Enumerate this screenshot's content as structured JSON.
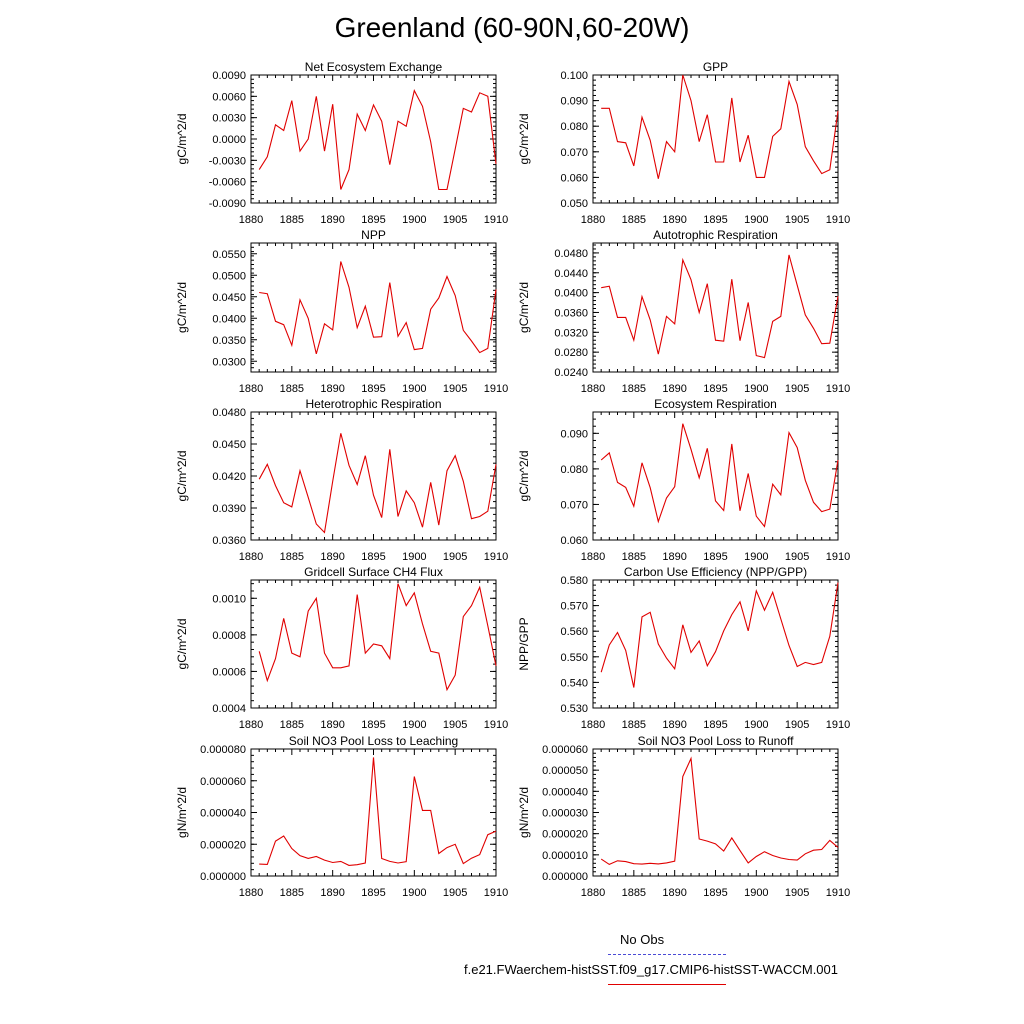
{
  "title": "Greenland (60-90N,60-20W)",
  "legend": [
    {
      "label": "No Obs",
      "color": "#4a4ad6",
      "style": "dashed"
    },
    {
      "label": "f.e21.FWaerchem-histSST.f09_g17.CMIP6-histSST-WACCM.001",
      "color": "#e00000",
      "style": "solid"
    }
  ],
  "chart_data": [
    {
      "type": "line",
      "title": "Net Ecosystem Exchange",
      "ylabel": "gC/m^2/d",
      "xlim": [
        1880,
        1910
      ],
      "xticks": [
        "1880",
        "1885",
        "1890",
        "1895",
        "1900",
        "1905",
        "1910"
      ],
      "ylim": [
        -0.009,
        0.009
      ],
      "yticks": [
        "-0.0090",
        "-0.0060",
        "-0.0030",
        "0.0000",
        "0.0030",
        "0.0060",
        "0.0090"
      ],
      "ytick_values": [
        -0.009,
        -0.006,
        -0.003,
        0,
        0.003,
        0.006,
        0.009
      ],
      "x": [
        1881,
        1882,
        1883,
        1884,
        1885,
        1886,
        1887,
        1888,
        1889,
        1890,
        1891,
        1892,
        1893,
        1894,
        1895,
        1896,
        1897,
        1898,
        1899,
        1900,
        1901,
        1902,
        1903,
        1904,
        1905,
        1906,
        1907,
        1908,
        1909,
        1910
      ],
      "series": [
        {
          "name": "f.e21.FWaerchem-histSST.f09_g17.CMIP6-histSST-WACCM.001",
          "color": "#e00000",
          "values": [
            -0.0043,
            -0.0025,
            0.002,
            0.0012,
            0.0054,
            -0.0017,
            0.0,
            0.006,
            -0.0017,
            0.0049,
            -0.0071,
            -0.0043,
            0.0035,
            0.0012,
            0.0048,
            0.0025,
            -0.0036,
            0.0025,
            0.0018,
            0.0068,
            0.0046,
            -0.0004,
            -0.0071,
            -0.0071,
            -0.0014,
            0.0043,
            0.0038,
            0.0065,
            0.006,
            -0.0035
          ]
        }
      ]
    },
    {
      "type": "line",
      "title": "GPP",
      "ylabel": "gC/m^2/d",
      "xlim": [
        1880,
        1910
      ],
      "xticks": [
        "1880",
        "1885",
        "1890",
        "1895",
        "1900",
        "1905",
        "1910"
      ],
      "ylim": [
        0.05,
        0.1
      ],
      "yticks": [
        "0.050",
        "0.060",
        "0.070",
        "0.080",
        "0.090",
        "0.100"
      ],
      "ytick_values": [
        0.05,
        0.06,
        0.07,
        0.08,
        0.09,
        0.1
      ],
      "x": [
        1881,
        1882,
        1883,
        1884,
        1885,
        1886,
        1887,
        1888,
        1889,
        1890,
        1891,
        1892,
        1893,
        1894,
        1895,
        1896,
        1897,
        1898,
        1899,
        1900,
        1901,
        1902,
        1903,
        1904,
        1905,
        1906,
        1907,
        1908,
        1909,
        1910
      ],
      "series": [
        {
          "name": "f.e21.FWaerchem-histSST.f09_g17.CMIP6-histSST-WACCM.001",
          "color": "#e00000",
          "values": [
            0.087,
            0.087,
            0.074,
            0.0735,
            0.0645,
            0.0835,
            0.0745,
            0.0595,
            0.074,
            0.07,
            0.1,
            0.09,
            0.074,
            0.0845,
            0.066,
            0.066,
            0.091,
            0.066,
            0.0765,
            0.06,
            0.06,
            0.076,
            0.079,
            0.0975,
            0.0885,
            0.072,
            0.0665,
            0.0615,
            0.063,
            0.086
          ]
        }
      ]
    },
    {
      "type": "line",
      "title": "NPP",
      "ylabel": "gC/m^2/d",
      "xlim": [
        1880,
        1910
      ],
      "xticks": [
        "1880",
        "1885",
        "1890",
        "1895",
        "1900",
        "1905",
        "1910"
      ],
      "ylim": [
        0.0275,
        0.0575
      ],
      "yticks": [
        "0.0300",
        "0.0350",
        "0.0400",
        "0.0450",
        "0.0500",
        "0.0550"
      ],
      "ytick_values": [
        0.03,
        0.035,
        0.04,
        0.045,
        0.05,
        0.055
      ],
      "x": [
        1881,
        1882,
        1883,
        1884,
        1885,
        1886,
        1887,
        1888,
        1889,
        1890,
        1891,
        1892,
        1893,
        1894,
        1895,
        1896,
        1897,
        1898,
        1899,
        1900,
        1901,
        1902,
        1903,
        1904,
        1905,
        1906,
        1907,
        1908,
        1909,
        1910
      ],
      "series": [
        {
          "name": "f.e21.FWaerchem-histSST.f09_g17.CMIP6-histSST-WACCM.001",
          "color": "#e00000",
          "values": [
            0.046,
            0.0457,
            0.0393,
            0.0385,
            0.0337,
            0.0443,
            0.04,
            0.0317,
            0.0387,
            0.0373,
            0.0532,
            0.0472,
            0.0378,
            0.0428,
            0.0356,
            0.0357,
            0.0483,
            0.0358,
            0.039,
            0.0327,
            0.033,
            0.0421,
            0.0447,
            0.0497,
            0.0453,
            0.0372,
            0.0347,
            0.032,
            0.033,
            0.0467
          ]
        }
      ]
    },
    {
      "type": "line",
      "title": "Autotrophic Respiration",
      "ylabel": "gC/m^2/d",
      "xlim": [
        1880,
        1910
      ],
      "xticks": [
        "1880",
        "1885",
        "1890",
        "1895",
        "1900",
        "1905",
        "1910"
      ],
      "ylim": [
        0.024,
        0.05
      ],
      "yticks": [
        "0.0240",
        "0.0280",
        "0.0320",
        "0.0360",
        "0.0400",
        "0.0440",
        "0.0480"
      ],
      "ytick_values": [
        0.024,
        0.028,
        0.032,
        0.036,
        0.04,
        0.044,
        0.048
      ],
      "x": [
        1881,
        1882,
        1883,
        1884,
        1885,
        1886,
        1887,
        1888,
        1889,
        1890,
        1891,
        1892,
        1893,
        1894,
        1895,
        1896,
        1897,
        1898,
        1899,
        1900,
        1901,
        1902,
        1903,
        1904,
        1905,
        1906,
        1907,
        1908,
        1909,
        1910
      ],
      "series": [
        {
          "name": "f.e21.FWaerchem-histSST.f09_g17.CMIP6-histSST-WACCM.001",
          "color": "#e00000",
          "values": [
            0.041,
            0.0413,
            0.035,
            0.035,
            0.0304,
            0.0392,
            0.0345,
            0.0276,
            0.0352,
            0.0337,
            0.0466,
            0.0426,
            0.036,
            0.0418,
            0.0304,
            0.0302,
            0.0427,
            0.0303,
            0.038,
            0.0273,
            0.0269,
            0.0342,
            0.0352,
            0.0476,
            0.0415,
            0.0355,
            0.0328,
            0.0297,
            0.0298,
            0.0393
          ]
        }
      ]
    },
    {
      "type": "line",
      "title": "Heterotrophic Respiration",
      "ylabel": "gC/m^2/d",
      "xlim": [
        1880,
        1910
      ],
      "xticks": [
        "1880",
        "1885",
        "1890",
        "1895",
        "1900",
        "1905",
        "1910"
      ],
      "ylim": [
        0.036,
        0.048
      ],
      "yticks": [
        "0.0360",
        "0.0390",
        "0.0420",
        "0.0450",
        "0.0480"
      ],
      "ytick_values": [
        0.036,
        0.039,
        0.042,
        0.045,
        0.048
      ],
      "x": [
        1881,
        1882,
        1883,
        1884,
        1885,
        1886,
        1887,
        1888,
        1889,
        1890,
        1891,
        1892,
        1893,
        1894,
        1895,
        1896,
        1897,
        1898,
        1899,
        1900,
        1901,
        1902,
        1903,
        1904,
        1905,
        1906,
        1907,
        1908,
        1909,
        1910
      ],
      "series": [
        {
          "name": "f.e21.FWaerchem-histSST.f09_g17.CMIP6-histSST-WACCM.001",
          "color": "#e00000",
          "values": [
            0.0417,
            0.0431,
            0.0411,
            0.0395,
            0.0391,
            0.0425,
            0.04,
            0.0375,
            0.0367,
            0.0415,
            0.046,
            0.043,
            0.0412,
            0.0439,
            0.0402,
            0.0381,
            0.0445,
            0.0382,
            0.0406,
            0.0395,
            0.0372,
            0.0414,
            0.0374,
            0.0425,
            0.0439,
            0.0415,
            0.038,
            0.0382,
            0.0387,
            0.0431
          ]
        }
      ]
    },
    {
      "type": "line",
      "title": "Ecosystem Respiration",
      "ylabel": "gC/m^2/d",
      "xlim": [
        1880,
        1910
      ],
      "xticks": [
        "1880",
        "1885",
        "1890",
        "1895",
        "1900",
        "1905",
        "1910"
      ],
      "ylim": [
        0.06,
        0.096
      ],
      "yticks": [
        "0.060",
        "0.070",
        "0.080",
        "0.090"
      ],
      "ytick_values": [
        0.06,
        0.07,
        0.08,
        0.09
      ],
      "x": [
        1881,
        1882,
        1883,
        1884,
        1885,
        1886,
        1887,
        1888,
        1889,
        1890,
        1891,
        1892,
        1893,
        1894,
        1895,
        1896,
        1897,
        1898,
        1899,
        1900,
        1901,
        1902,
        1903,
        1904,
        1905,
        1906,
        1907,
        1908,
        1909,
        1910
      ],
      "series": [
        {
          "name": "f.e21.FWaerchem-histSST.f09_g17.CMIP6-histSST-WACCM.001",
          "color": "#e00000",
          "values": [
            0.0825,
            0.0845,
            0.0762,
            0.0748,
            0.0695,
            0.0817,
            0.0747,
            0.0652,
            0.0718,
            0.075,
            0.0927,
            0.0855,
            0.0775,
            0.0858,
            0.071,
            0.0683,
            0.087,
            0.0682,
            0.0787,
            0.0667,
            0.0638,
            0.0757,
            0.0727,
            0.0902,
            0.086,
            0.0768,
            0.0706,
            0.068,
            0.0687,
            0.0825
          ]
        }
      ]
    },
    {
      "type": "line",
      "title": "Gridcell Surface CH4 Flux",
      "ylabel": "gC/m^2/d",
      "xlim": [
        1880,
        1910
      ],
      "xticks": [
        "1880",
        "1885",
        "1890",
        "1895",
        "1900",
        "1905",
        "1910"
      ],
      "ylim": [
        0.0004,
        0.0011
      ],
      "yticks": [
        "0.0004",
        "0.0006",
        "0.0008",
        "0.0010"
      ],
      "ytick_values": [
        0.0004,
        0.0006,
        0.0008,
        0.001
      ],
      "x": [
        1881,
        1882,
        1883,
        1884,
        1885,
        1886,
        1887,
        1888,
        1889,
        1890,
        1891,
        1892,
        1893,
        1894,
        1895,
        1896,
        1897,
        1898,
        1899,
        1900,
        1901,
        1902,
        1903,
        1904,
        1905,
        1906,
        1907,
        1908,
        1909,
        1910
      ],
      "series": [
        {
          "name": "f.e21.FWaerchem-histSST.f09_g17.CMIP6-histSST-WACCM.001",
          "color": "#e00000",
          "values": [
            0.00071,
            0.00055,
            0.00067,
            0.00089,
            0.0007,
            0.00068,
            0.00093,
            0.001,
            0.0007,
            0.00062,
            0.00062,
            0.00063,
            0.00102,
            0.0007,
            0.00075,
            0.00074,
            0.00067,
            0.00108,
            0.00096,
            0.00103,
            0.00086,
            0.00071,
            0.0007,
            0.0005,
            0.00058,
            0.0009,
            0.00096,
            0.00106,
            0.00085,
            0.00063
          ]
        }
      ]
    },
    {
      "type": "line",
      "title": "Carbon Use Efficiency (NPP/GPP)",
      "ylabel": "NPP/GPP",
      "xlim": [
        1880,
        1910
      ],
      "xticks": [
        "1880",
        "1885",
        "1890",
        "1895",
        "1900",
        "1905",
        "1910"
      ],
      "ylim": [
        0.53,
        0.58
      ],
      "yticks": [
        "0.530",
        "0.540",
        "0.550",
        "0.560",
        "0.570",
        "0.580"
      ],
      "ytick_values": [
        0.53,
        0.54,
        0.55,
        0.56,
        0.57,
        0.58
      ],
      "x": [
        1881,
        1882,
        1883,
        1884,
        1885,
        1886,
        1887,
        1888,
        1889,
        1890,
        1891,
        1892,
        1893,
        1894,
        1895,
        1896,
        1897,
        1898,
        1899,
        1900,
        1901,
        1902,
        1903,
        1904,
        1905,
        1906,
        1907,
        1908,
        1909,
        1910
      ],
      "series": [
        {
          "name": "f.e21.FWaerchem-histSST.f09_g17.CMIP6-histSST-WACCM.001",
          "color": "#e00000",
          "values": [
            0.544,
            0.5546,
            0.5595,
            0.5525,
            0.538,
            0.5656,
            0.5674,
            0.555,
            0.5495,
            0.5453,
            0.5625,
            0.5517,
            0.5562,
            0.5465,
            0.552,
            0.5601,
            0.5665,
            0.5715,
            0.5601,
            0.5758,
            0.5682,
            0.5752,
            0.5648,
            0.5544,
            0.5462,
            0.5478,
            0.547,
            0.5478,
            0.558,
            0.579
          ]
        }
      ]
    },
    {
      "type": "line",
      "title": "Soil NO3 Pool Loss to Leaching",
      "ylabel": "gN/m^2/d",
      "xlim": [
        1880,
        1910
      ],
      "xticks": [
        "1880",
        "1885",
        "1890",
        "1895",
        "1900",
        "1905",
        "1910"
      ],
      "ylim": [
        0,
        8e-05
      ],
      "yticks": [
        "0.000000",
        "0.000020",
        "0.000040",
        "0.000060",
        "0.000080"
      ],
      "ytick_values": [
        0,
        2e-05,
        4e-05,
        6e-05,
        8e-05
      ],
      "x": [
        1881,
        1882,
        1883,
        1884,
        1885,
        1886,
        1887,
        1888,
        1889,
        1890,
        1891,
        1892,
        1893,
        1894,
        1895,
        1896,
        1897,
        1898,
        1899,
        1900,
        1901,
        1902,
        1903,
        1904,
        1905,
        1906,
        1907,
        1908,
        1909,
        1910
      ],
      "series": [
        {
          "name": "f.e21.FWaerchem-histSST.f09_g17.CMIP6-histSST-WACCM.001",
          "color": "#e00000",
          "values": [
            7.5e-06,
            7.3e-06,
            2.2e-05,
            2.52e-05,
            1.73e-05,
            1.28e-05,
            1.11e-05,
            1.23e-05,
            1e-05,
            8.5e-06,
            9.2e-06,
            6.7e-06,
            7.1e-06,
            8.1e-06,
            7.47e-05,
            1.1e-05,
            9.2e-06,
            8.2e-06,
            9e-06,
            6.27e-05,
            4.13e-05,
            4.13e-05,
            1.42e-05,
            1.79e-05,
            2e-05,
            7.8e-06,
            1.12e-05,
            1.35e-05,
            2.6e-05,
            2.83e-05
          ]
        }
      ]
    },
    {
      "type": "line",
      "title": "Soil NO3 Pool Loss to Runoff",
      "ylabel": "gN/m^2/d",
      "xlim": [
        1880,
        1910
      ],
      "xticks": [
        "1880",
        "1885",
        "1890",
        "1895",
        "1900",
        "1905",
        "1910"
      ],
      "ylim": [
        0,
        6e-05
      ],
      "yticks": [
        "0.000000",
        "0.000010",
        "0.000020",
        "0.000030",
        "0.000040",
        "0.000050",
        "0.000060"
      ],
      "ytick_values": [
        0,
        1e-05,
        2e-05,
        3e-05,
        4e-05,
        5e-05,
        6e-05
      ],
      "x": [
        1881,
        1882,
        1883,
        1884,
        1885,
        1886,
        1887,
        1888,
        1889,
        1890,
        1891,
        1892,
        1893,
        1894,
        1895,
        1896,
        1897,
        1898,
        1899,
        1900,
        1901,
        1902,
        1903,
        1904,
        1905,
        1906,
        1907,
        1908,
        1909,
        1910
      ],
      "series": [
        {
          "name": "f.e21.FWaerchem-histSST.f09_g17.CMIP6-histSST-WACCM.001",
          "color": "#e00000",
          "values": [
            8e-06,
            5.5e-06,
            7.2e-06,
            6.8e-06,
            5.8e-06,
            5.6e-06,
            6e-06,
            5.7e-06,
            6.2e-06,
            7e-06,
            4.7e-05,
            5.55e-05,
            1.75e-05,
            1.65e-05,
            1.52e-05,
            1.18e-05,
            1.8e-05,
            1.2e-05,
            6.2e-06,
            9.2e-06,
            1.15e-05,
            9.7e-06,
            8.5e-06,
            7.8e-06,
            7.5e-06,
            1.05e-05,
            1.22e-05,
            1.25e-05,
            1.68e-05,
            1.35e-05
          ]
        }
      ]
    }
  ]
}
